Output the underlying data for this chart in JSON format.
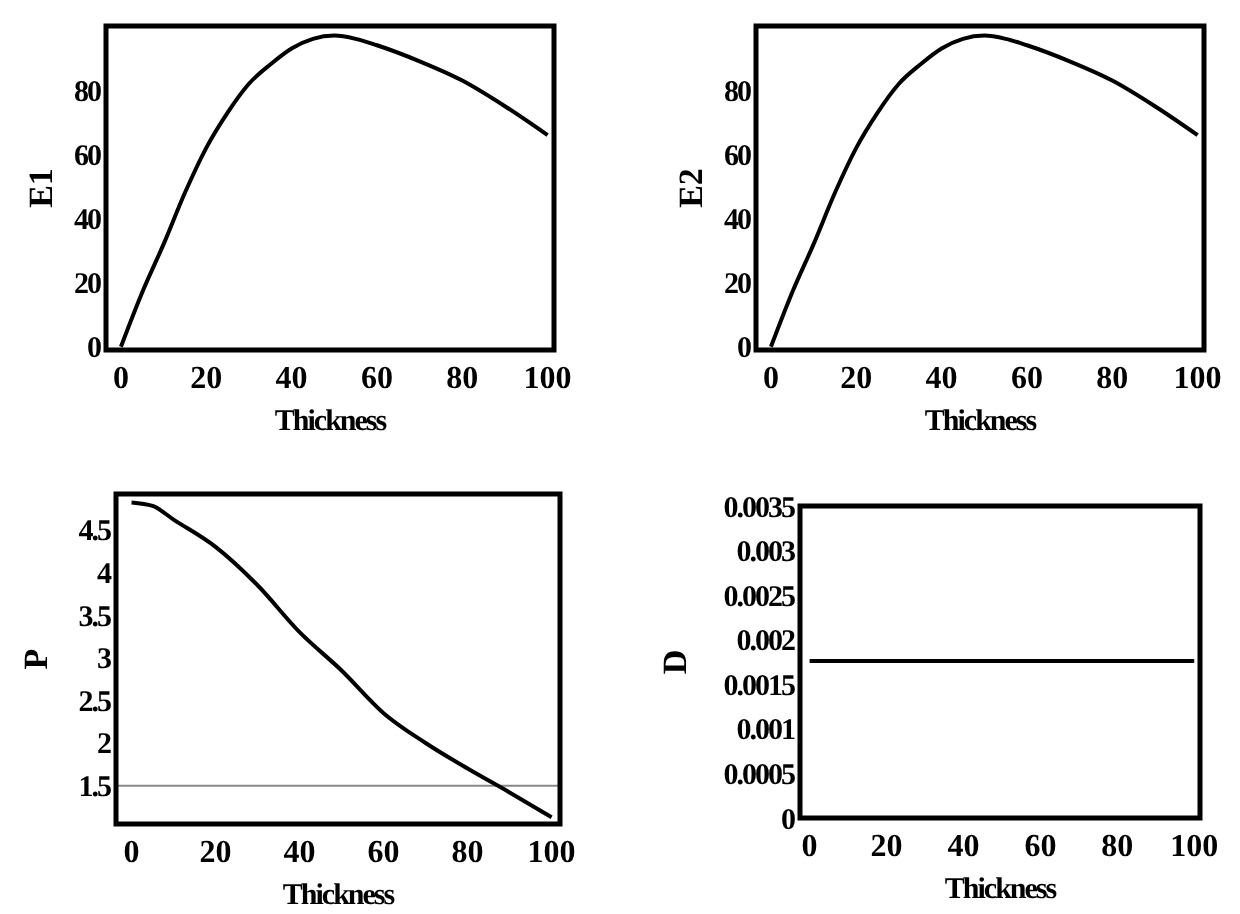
{
  "chart_data": [
    {
      "type": "line",
      "xlabel": "Thickness",
      "ylabel": "E1",
      "x": [
        0,
        5,
        10,
        15,
        20,
        25,
        30,
        35,
        40,
        45,
        50,
        55,
        60,
        70,
        80,
        90,
        100
      ],
      "values": [
        0,
        17,
        32,
        48,
        62,
        73,
        82,
        88,
        93,
        96,
        97,
        96,
        94,
        89,
        83,
        75,
        66
      ],
      "color": "#000000",
      "xlim": [
        -3.5,
        101.5
      ],
      "ylim": [
        -1,
        100
      ],
      "xticks": [
        0,
        20,
        40,
        60,
        80,
        100
      ],
      "yticks": [
        0,
        20,
        40,
        60,
        80
      ],
      "grid": false
    },
    {
      "type": "line",
      "xlabel": "Thickness",
      "ylabel": "E2",
      "x": [
        0,
        5,
        10,
        15,
        20,
        25,
        30,
        35,
        40,
        45,
        50,
        55,
        60,
        70,
        80,
        90,
        100
      ],
      "values": [
        0,
        17,
        32,
        48,
        62,
        73,
        82,
        88,
        93,
        96,
        97,
        96,
        94,
        89,
        83,
        75,
        66
      ],
      "color": "#000000",
      "xlim": [
        -3.5,
        101.5
      ],
      "ylim": [
        -1,
        100
      ],
      "xticks": [
        0,
        20,
        40,
        60,
        80,
        100
      ],
      "yticks": [
        0,
        20,
        40,
        60,
        80
      ],
      "grid": false
    },
    {
      "type": "line",
      "xlabel": "Thickness",
      "ylabel": "P",
      "x": [
        0,
        5,
        10,
        20,
        30,
        40,
        50,
        60,
        70,
        80,
        90,
        100
      ],
      "values": [
        4.82,
        4.78,
        4.62,
        4.3,
        3.85,
        3.3,
        2.85,
        2.35,
        2.0,
        1.7,
        1.42,
        1.13
      ],
      "color": "#000000",
      "xlim": [
        -3.7,
        102
      ],
      "ylim": [
        1.05,
        4.92
      ],
      "xticks": [
        0,
        20,
        40,
        60,
        80,
        100
      ],
      "yticks": [
        1.5,
        2,
        2.5,
        3,
        3.5,
        4,
        4.5
      ],
      "ref_lines": [
        {
          "axis": "y",
          "value": 1.5,
          "color": "#888888"
        }
      ],
      "grid": false
    },
    {
      "type": "line",
      "xlabel": "Thickness",
      "ylabel": "D",
      "x": [
        0,
        100
      ],
      "values": [
        0.00176,
        0.00176
      ],
      "color": "#000000",
      "xlim": [
        -2.5,
        101.5
      ],
      "ylim": [
        0,
        0.0035
      ],
      "xticks": [
        0,
        20,
        40,
        60,
        80,
        100
      ],
      "yticks": [
        0,
        0.0005,
        0.001,
        0.0015,
        0.002,
        0.0025,
        0.003,
        0.0035
      ],
      "grid": false
    }
  ]
}
